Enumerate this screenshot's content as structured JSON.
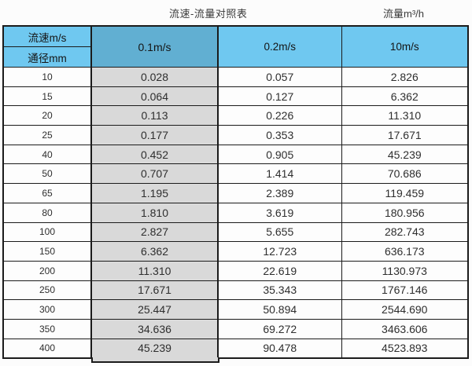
{
  "titles": {
    "main": "流速-流量对照表",
    "unit": "流量m³/h"
  },
  "table": {
    "corner": {
      "top": "流速m/s",
      "bottom": "通径mm"
    },
    "columns": [
      "0.1m/s",
      "0.2m/s",
      "10m/s"
    ],
    "rows": [
      {
        "diameter": "10",
        "values": [
          "0.028",
          "0.057",
          "2.826"
        ]
      },
      {
        "diameter": "15",
        "values": [
          "0.064",
          "0.127",
          "6.362"
        ]
      },
      {
        "diameter": "20",
        "values": [
          "0.113",
          "0.226",
          "11.310"
        ]
      },
      {
        "diameter": "25",
        "values": [
          "0.177",
          "0.353",
          "17.671"
        ]
      },
      {
        "diameter": "40",
        "values": [
          "0.452",
          "0.905",
          "45.239"
        ]
      },
      {
        "diameter": "50",
        "values": [
          "0.707",
          "1.414",
          "70.686"
        ]
      },
      {
        "diameter": "65",
        "values": [
          "1.195",
          "2.389",
          "119.459"
        ]
      },
      {
        "diameter": "80",
        "values": [
          "1.810",
          "3.619",
          "180.956"
        ]
      },
      {
        "diameter": "100",
        "values": [
          "2.827",
          "5.655",
          "282.743"
        ]
      },
      {
        "diameter": "150",
        "values": [
          "6.362",
          "12.723",
          "636.173"
        ]
      },
      {
        "diameter": "200",
        "values": [
          "11.310",
          "22.619",
          "1130.973"
        ]
      },
      {
        "diameter": "250",
        "values": [
          "17.671",
          "35.343",
          "1767.146"
        ]
      },
      {
        "diameter": "300",
        "values": [
          "25.447",
          "50.894",
          "2544.690"
        ]
      },
      {
        "diameter": "350",
        "values": [
          "34.636",
          "69.272",
          "3463.606"
        ]
      },
      {
        "diameter": "400",
        "values": [
          "45.239",
          "90.478",
          "4523.893"
        ]
      }
    ]
  },
  "colors": {
    "header_blue": "#6FC8F0",
    "highlight_blue": "#61AFD2",
    "highlight_gray": "#D9D9D9",
    "border": "#1B1B1B"
  },
  "chart_data": {
    "type": "table",
    "title": "流速-流量对照表",
    "unit_label": "流量m³/h",
    "row_header_top": "流速m/s",
    "row_header_bottom": "通径mm",
    "columns": [
      "0.1m/s",
      "0.2m/s",
      "10m/s"
    ],
    "diameters_mm": [
      10,
      15,
      20,
      25,
      40,
      50,
      65,
      80,
      100,
      150,
      200,
      250,
      300,
      350,
      400
    ],
    "rows": [
      [
        0.028,
        0.057,
        2.826
      ],
      [
        0.064,
        0.127,
        6.362
      ],
      [
        0.113,
        0.226,
        11.31
      ],
      [
        0.177,
        0.353,
        17.671
      ],
      [
        0.452,
        0.905,
        45.239
      ],
      [
        0.707,
        1.414,
        70.686
      ],
      [
        1.195,
        2.389,
        119.459
      ],
      [
        1.81,
        3.619,
        180.956
      ],
      [
        2.827,
        5.655,
        282.743
      ],
      [
        6.362,
        12.723,
        636.173
      ],
      [
        11.31,
        22.619,
        1130.973
      ],
      [
        17.671,
        35.343,
        1767.146
      ],
      [
        25.447,
        50.894,
        2544.69
      ],
      [
        34.636,
        69.272,
        3463.606
      ],
      [
        45.239,
        90.478,
        4523.893
      ]
    ]
  }
}
